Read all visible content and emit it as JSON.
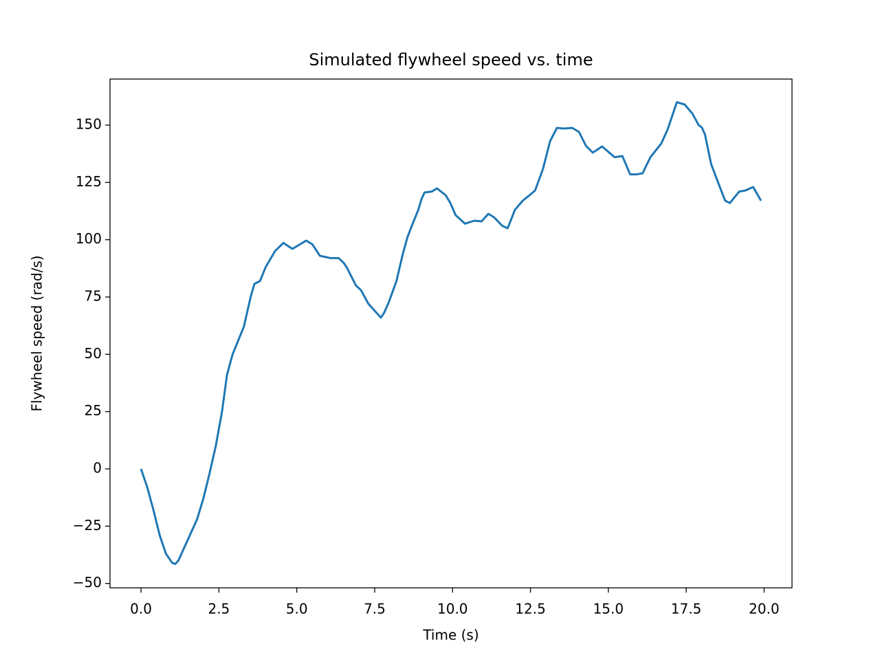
{
  "chart_data": {
    "type": "line",
    "title": "Simulated flywheel speed vs. time",
    "x_label": "Time (s)",
    "y_label": "Flywheel speed (rad/s)",
    "series": [
      {
        "name": "flywheel speed",
        "color": "#1f77b4",
        "x": [
          0,
          0.2,
          0.4,
          0.6,
          0.8,
          1.0,
          1.1,
          1.2,
          1.4,
          1.6,
          1.8,
          2.0,
          2.2,
          2.4,
          2.6,
          2.76,
          2.94,
          3.3,
          3.53,
          3.64,
          3.82,
          4.0,
          4.3,
          4.57,
          4.86,
          5.3,
          5.5,
          5.74,
          6.07,
          6.34,
          6.5,
          6.6,
          6.9,
          7.06,
          7.3,
          7.5,
          7.7,
          7.8,
          7.95,
          8.2,
          8.4,
          8.55,
          8.72,
          8.9,
          9.0,
          9.1,
          9.33,
          9.5,
          9.78,
          9.93,
          10.1,
          10.4,
          10.7,
          10.93,
          11.15,
          11.33,
          11.6,
          11.77,
          12.0,
          12.25,
          12.47,
          12.65,
          12.9,
          13.13,
          13.35,
          13.58,
          13.84,
          14.06,
          14.28,
          14.5,
          14.8,
          15.2,
          15.45,
          15.7,
          15.9,
          16.1,
          16.35,
          16.7,
          16.9,
          17.2,
          17.45,
          17.7,
          17.9,
          18.0,
          18.1,
          18.3,
          18.55,
          18.75,
          18.9,
          19.2,
          19.4,
          19.65,
          19.9
        ],
        "values": [
          0,
          -8,
          -18,
          -29,
          -37,
          -41,
          -41.5,
          -40,
          -34,
          -28,
          -22,
          -13,
          -2,
          10,
          25,
          41,
          50,
          62,
          75.6,
          80.7,
          82,
          88,
          95,
          98.6,
          96,
          99.6,
          98,
          93,
          92,
          92,
          90,
          88,
          80,
          78,
          72,
          69,
          66,
          68,
          72.6,
          82,
          93.6,
          101,
          107,
          113,
          117.6,
          120.6,
          121,
          122.4,
          119.4,
          116,
          110.7,
          107,
          108.3,
          108,
          111.3,
          109.8,
          106,
          105,
          113,
          117,
          119.4,
          121.5,
          130.8,
          143,
          148.8,
          148.5,
          148.8,
          147,
          141,
          138,
          140.7,
          136,
          136.5,
          128.5,
          128.5,
          129,
          136,
          142,
          148,
          160,
          159,
          155,
          150,
          149,
          146,
          133,
          124,
          117,
          116,
          121,
          121.5,
          123,
          117
        ]
      }
    ],
    "xlim": [
      -0.995,
      20.895
    ],
    "ylim": [
      -51.9,
      170.1
    ],
    "xticks": [
      {
        "value": 0,
        "label": "0.0"
      },
      2.5,
      {
        "value": 5,
        "label": "5.0"
      },
      7.5,
      {
        "value": 10,
        "label": "10.0"
      },
      12.5,
      {
        "value": 15,
        "label": "15.0"
      },
      17.5,
      {
        "value": 20,
        "label": "20.0"
      }
    ],
    "yticks": [
      {
        "value": -50,
        "label": "−50"
      },
      {
        "value": -25,
        "label": "−25"
      },
      0,
      25,
      50,
      75,
      100,
      125,
      150
    ],
    "grid": false
  }
}
